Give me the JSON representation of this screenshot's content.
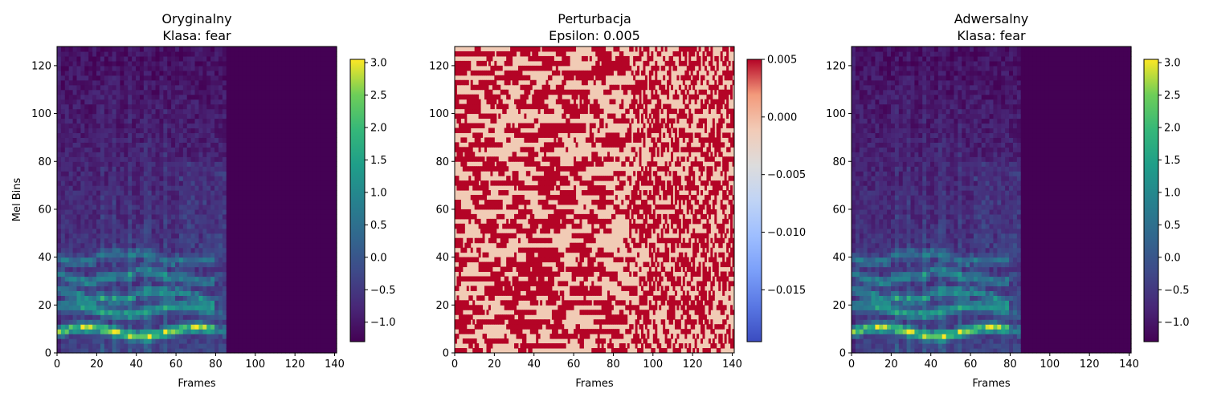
{
  "chart_data": [
    {
      "type": "heatmap",
      "title": "Oryginalny\nKlasa: fear",
      "title_lines": [
        "Oryginalny",
        "Klasa: fear"
      ],
      "xlabel": "Frames",
      "ylabel": "Mel Bins",
      "xlim": [
        0,
        141
      ],
      "ylim": [
        0,
        128
      ],
      "xticks": [
        0,
        20,
        40,
        60,
        80,
        100,
        120,
        140
      ],
      "yticks": [
        0,
        20,
        40,
        60,
        80,
        100,
        120
      ],
      "colormap": "viridis",
      "color_range": [
        -1.3,
        3.05
      ],
      "colorbar_ticks": [
        -1.0,
        -0.5,
        0.0,
        0.5,
        1.0,
        1.5,
        2.0,
        2.5,
        3.0
      ],
      "colorbar_tick_labels": [
        "−1.0",
        "−0.5",
        "0.0",
        "0.5",
        "1.0",
        "1.5",
        "2.0",
        "2.5",
        "3.0"
      ],
      "content": "mel spectrogram; speech energy in frames 0-86, silent padding (min value) from frame 86 to 141",
      "speech_end_frame": 86,
      "formant_bands_mel_bins": [
        8,
        17,
        24,
        32,
        40
      ]
    },
    {
      "type": "heatmap",
      "title": "Perturbacja\nEpsilon: 0.005",
      "title_lines": [
        "Perturbacja",
        "Epsilon: 0.005"
      ],
      "xlabel": "Frames",
      "ylabel": "",
      "xlim": [
        0,
        141
      ],
      "ylim": [
        0,
        128
      ],
      "xticks": [
        0,
        20,
        40,
        60,
        80,
        100,
        120,
        140
      ],
      "yticks": [
        0,
        20,
        40,
        60,
        80,
        100,
        120
      ],
      "colormap": "coolwarm",
      "color_range": [
        -0.0195,
        0.005
      ],
      "colorbar_ticks": [
        -0.015,
        -0.01,
        -0.005,
        0.0,
        0.005
      ],
      "colorbar_tick_labels": [
        "−0.015",
        "−0.010",
        "−0.005",
        "0.000",
        "0.005"
      ],
      "values_present": [
        -0.005,
        0.005
      ],
      "content": "sign-based perturbation, each cell is either +0.005 or -0.005"
    },
    {
      "type": "heatmap",
      "title": "Adwersalny\nKlasa: fear",
      "title_lines": [
        "Adwersalny",
        "Klasa: fear"
      ],
      "xlabel": "Frames",
      "ylabel": "",
      "xlim": [
        0,
        141
      ],
      "ylim": [
        0,
        128
      ],
      "xticks": [
        0,
        20,
        40,
        60,
        80,
        100,
        120,
        140
      ],
      "yticks": [
        0,
        20,
        40,
        60,
        80,
        100,
        120
      ],
      "colormap": "viridis",
      "color_range": [
        -1.3,
        3.05
      ],
      "colorbar_ticks": [
        -1.0,
        -0.5,
        0.0,
        0.5,
        1.0,
        1.5,
        2.0,
        2.5,
        3.0
      ],
      "colorbar_tick_labels": [
        "−1.0",
        "−0.5",
        "0.0",
        "0.5",
        "1.0",
        "1.5",
        "2.0",
        "2.5",
        "3.0"
      ],
      "content": "original spectrogram plus perturbation (visually identical to the original)",
      "speech_end_frame": 86,
      "formant_bands_mel_bins": [
        8,
        17,
        24,
        32,
        40
      ]
    }
  ]
}
